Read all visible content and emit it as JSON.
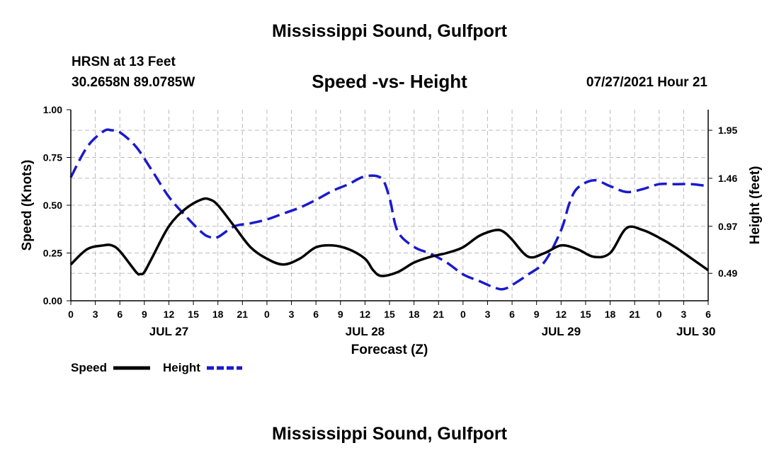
{
  "header": {
    "title": "Mississippi Sound, Gulfport",
    "station": "HRSN at 13 Feet",
    "coords": "30.2658N  89.0785W",
    "subtitle": "Speed -vs- Height",
    "datetime": "07/27/2021 Hour 21"
  },
  "footer": {
    "title": "Mississippi Sound, Gulfport"
  },
  "legend": {
    "speed_label": "Speed",
    "height_label": "Height"
  },
  "colors": {
    "speed": "#000000",
    "height": "#1a1acc",
    "grid": "#bbbbbb"
  },
  "chart_data": {
    "type": "line",
    "xlabel": "Forecast (Z)",
    "ylabel_left": "Speed (Knots)",
    "ylabel_right": "Height (feet)",
    "x_unit": "hours since JUL 27 00Z",
    "x_range": [
      0,
      78
    ],
    "x_ticks": [
      0,
      3,
      6,
      9,
      12,
      15,
      18,
      21,
      24,
      27,
      30,
      33,
      36,
      39,
      42,
      45,
      48,
      51,
      54,
      57,
      60,
      63,
      66,
      69,
      72,
      75,
      78
    ],
    "x_tick_labels": [
      "0",
      "3",
      "6",
      "9",
      "12",
      "15",
      "18",
      "21",
      "0",
      "3",
      "6",
      "9",
      "12",
      "15",
      "18",
      "21",
      "0",
      "3",
      "6",
      "9",
      "12",
      "15",
      "18",
      "21",
      "0",
      "3",
      "6"
    ],
    "date_labels": [
      {
        "label": "JUL 27",
        "at": 12
      },
      {
        "label": "JUL 28",
        "at": 36
      },
      {
        "label": "JUL 29",
        "at": 60
      },
      {
        "label": "JUL 30",
        "at": 76.5
      }
    ],
    "y_left": {
      "range": [
        0,
        1
      ],
      "ticks": [
        0,
        0.25,
        0.5,
        0.75,
        1.0
      ],
      "tick_labels": [
        "0.00",
        "0.25",
        "0.50",
        "0.75",
        "1.00"
      ]
    },
    "y_right": {
      "range": [
        0.21,
        2.16
      ],
      "ticks": [
        0.49,
        0.97,
        1.46,
        1.95
      ],
      "tick_labels": [
        "0.49",
        "0.97",
        "1.46",
        "1.95"
      ]
    },
    "grid": true,
    "series": [
      {
        "name": "Speed",
        "axis": "left",
        "style": "solid",
        "x": [
          0,
          2,
          4,
          5,
          6,
          8,
          8.5,
          9,
          10,
          12,
          14,
          16,
          17,
          18,
          20,
          22,
          24,
          26,
          28,
          30,
          32,
          34,
          36,
          37,
          38,
          40,
          42,
          44,
          46,
          48,
          50,
          52,
          53,
          54,
          56,
          58,
          60,
          62,
          64,
          66,
          68,
          70,
          72,
          74,
          76,
          78
        ],
        "y": [
          0.19,
          0.27,
          0.29,
          0.29,
          0.26,
          0.15,
          0.14,
          0.15,
          0.23,
          0.39,
          0.48,
          0.53,
          0.53,
          0.5,
          0.39,
          0.28,
          0.22,
          0.19,
          0.22,
          0.28,
          0.29,
          0.27,
          0.22,
          0.16,
          0.13,
          0.15,
          0.2,
          0.23,
          0.25,
          0.28,
          0.34,
          0.37,
          0.36,
          0.32,
          0.23,
          0.25,
          0.29,
          0.27,
          0.23,
          0.25,
          0.38,
          0.37,
          0.33,
          0.28,
          0.22,
          0.16
        ]
      },
      {
        "name": "Height",
        "axis": "right",
        "style": "dashed",
        "x": [
          0,
          2,
          4,
          5,
          6,
          8,
          10,
          12,
          14,
          16,
          17,
          18,
          20,
          22,
          24,
          26,
          28,
          30,
          32,
          34,
          36,
          38,
          39,
          40,
          42,
          44,
          46,
          48,
          50,
          52,
          53,
          54,
          56,
          58,
          60,
          61,
          62,
          64,
          66,
          68,
          70,
          72,
          74,
          76,
          78
        ],
        "y": [
          1.47,
          1.78,
          1.94,
          1.95,
          1.93,
          1.78,
          1.53,
          1.27,
          1.08,
          0.91,
          0.86,
          0.86,
          0.97,
          1.0,
          1.04,
          1.1,
          1.16,
          1.24,
          1.33,
          1.4,
          1.48,
          1.46,
          1.26,
          0.92,
          0.76,
          0.69,
          0.6,
          0.48,
          0.41,
          0.34,
          0.33,
          0.37,
          0.48,
          0.61,
          0.93,
          1.2,
          1.36,
          1.44,
          1.38,
          1.32,
          1.35,
          1.4,
          1.4,
          1.4,
          1.38
        ]
      }
    ]
  }
}
